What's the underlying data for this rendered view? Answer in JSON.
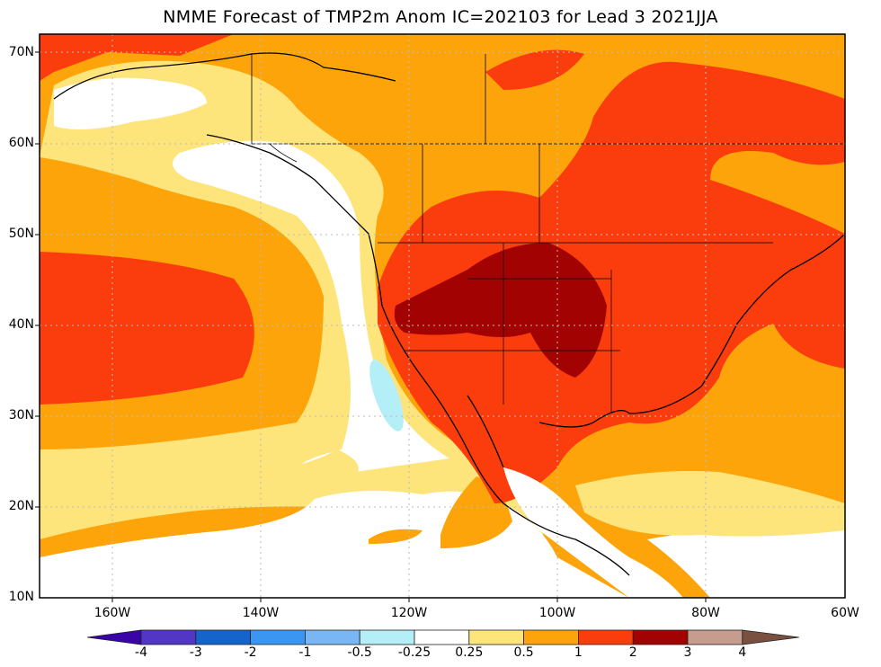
{
  "title": "NMME Forecast of TMP2m Anom IC=202103 for Lead 3 2021JJA",
  "lat_labels": [
    "70N",
    "60N",
    "50N",
    "40N",
    "30N",
    "20N",
    "10N"
  ],
  "lon_labels": [
    "160W",
    "140W",
    "120W",
    "100W",
    "80W",
    "60W"
  ],
  "colorbar": {
    "labels": [
      "-4",
      "-3",
      "-2",
      "-1",
      "-0.5",
      "-0.25",
      "0.25",
      "0.5",
      "1",
      "2",
      "3",
      "4"
    ],
    "colors": {
      "below_-4": "#3a05a8",
      "-4_-3": "#5236c4",
      "-3_-2": "#1464cc",
      "-2_-1": "#3a96f0",
      "-1_-0.5": "#78b6f4",
      "-0.5_-0.25": "#b4eef6",
      "-0.25_0.25": "#ffffff",
      "0.25_0.5": "#fde57c",
      "0.5_1": "#fca40a",
      "1_2": "#fb3c0c",
      "2_3": "#a20202",
      "3_4": "#c69c8e",
      "above_4": "#7a5040"
    }
  }
}
